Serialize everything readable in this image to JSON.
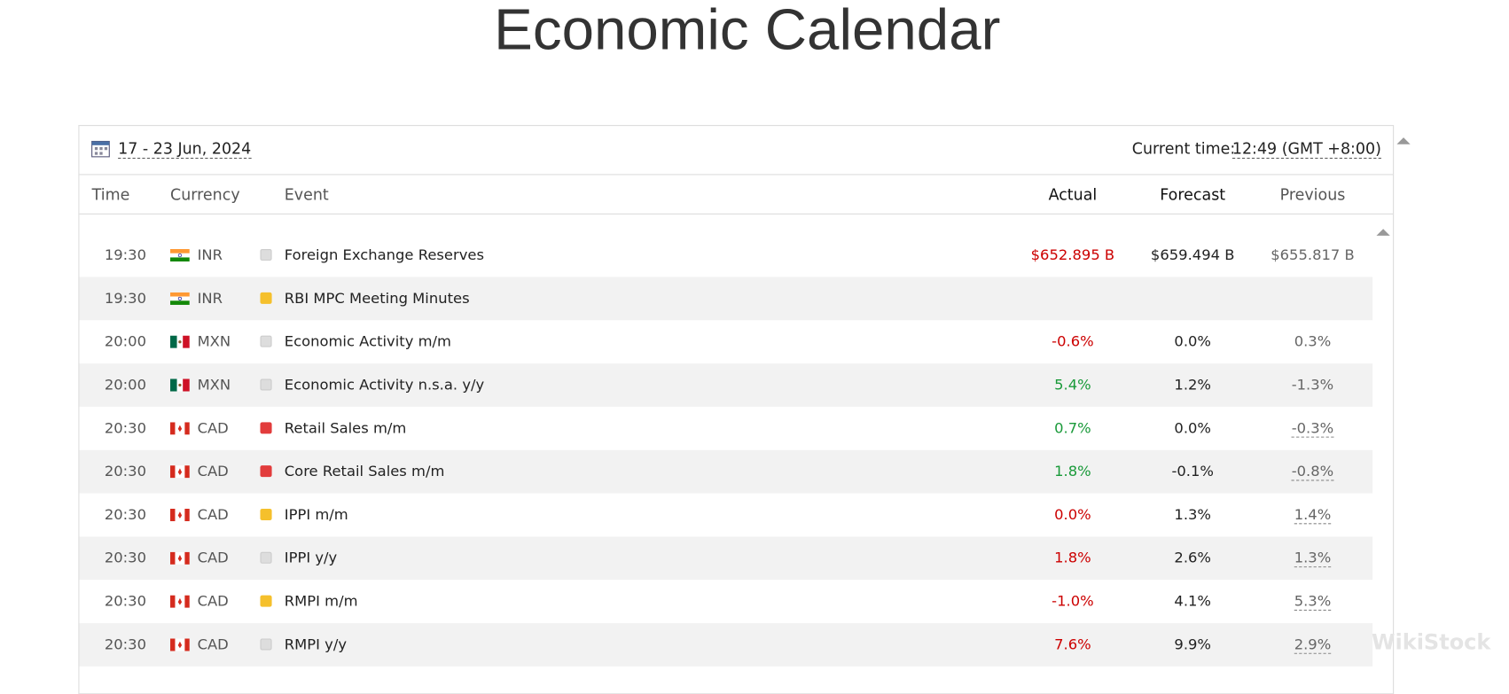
{
  "header": {
    "title": "Economic Calendar",
    "date_range": "17 - 23 Jun, 2024",
    "current_time_label": "Current time:",
    "current_time": "12:49 (GMT +8:00)"
  },
  "table": {
    "columns": [
      "Time",
      "Currency",
      "Event",
      "Actual",
      "Forecast",
      "Previous"
    ],
    "rows": [
      {
        "time": "19:30",
        "currency": "INR",
        "importance": "low",
        "event": "Foreign Exchange Reserves",
        "actual": "$652.895 B",
        "actual_color": "#cc0000",
        "forecast": "$659.494 B",
        "previous": "$655.817 B",
        "previous_revised": false
      },
      {
        "time": "19:30",
        "currency": "INR",
        "importance": "medium",
        "event": "RBI MPC Meeting Minutes",
        "actual": "",
        "actual_color": "#cc0000",
        "forecast": "",
        "previous": "",
        "previous_revised": false
      },
      {
        "time": "20:00",
        "currency": "MXN",
        "importance": "low",
        "event": "Economic Activity m/m",
        "actual": "-0.6%",
        "actual_color": "#cc0000",
        "forecast": "0.0%",
        "previous": "0.3%",
        "previous_revised": false
      },
      {
        "time": "20:00",
        "currency": "MXN",
        "importance": "low",
        "event": "Economic Activity n.s.a. y/y",
        "actual": "5.4%",
        "actual_color": "#1a9a3a",
        "forecast": "1.2%",
        "previous": "-1.3%",
        "previous_revised": false
      },
      {
        "time": "20:30",
        "currency": "CAD",
        "importance": "high",
        "event": "Retail Sales m/m",
        "actual": "0.7%",
        "actual_color": "#1a9a3a",
        "forecast": "0.0%",
        "previous": "-0.3%",
        "previous_revised": true
      },
      {
        "time": "20:30",
        "currency": "CAD",
        "importance": "high",
        "event": "Core Retail Sales m/m",
        "actual": "1.8%",
        "actual_color": "#1a9a3a",
        "forecast": "-0.1%",
        "previous": "-0.8%",
        "previous_revised": true
      },
      {
        "time": "20:30",
        "currency": "CAD",
        "importance": "medium",
        "event": "IPPI m/m",
        "actual": "0.0%",
        "actual_color": "#cc0000",
        "forecast": "1.3%",
        "previous": "1.4%",
        "previous_revised": true
      },
      {
        "time": "20:30",
        "currency": "CAD",
        "importance": "low",
        "event": "IPPI y/y",
        "actual": "1.8%",
        "actual_color": "#cc0000",
        "forecast": "2.6%",
        "previous": "1.3%",
        "previous_revised": true
      },
      {
        "time": "20:30",
        "currency": "CAD",
        "importance": "medium",
        "event": "RMPI m/m",
        "actual": "-1.0%",
        "actual_color": "#cc0000",
        "forecast": "4.1%",
        "previous": "5.3%",
        "previous_revised": true
      },
      {
        "time": "20:30",
        "currency": "CAD",
        "importance": "low",
        "event": "RMPI y/y",
        "actual": "7.6%",
        "actual_color": "#cc0000",
        "forecast": "9.9%",
        "previous": "2.9%",
        "previous_revised": true
      }
    ]
  },
  "watermark": "WikiStock"
}
